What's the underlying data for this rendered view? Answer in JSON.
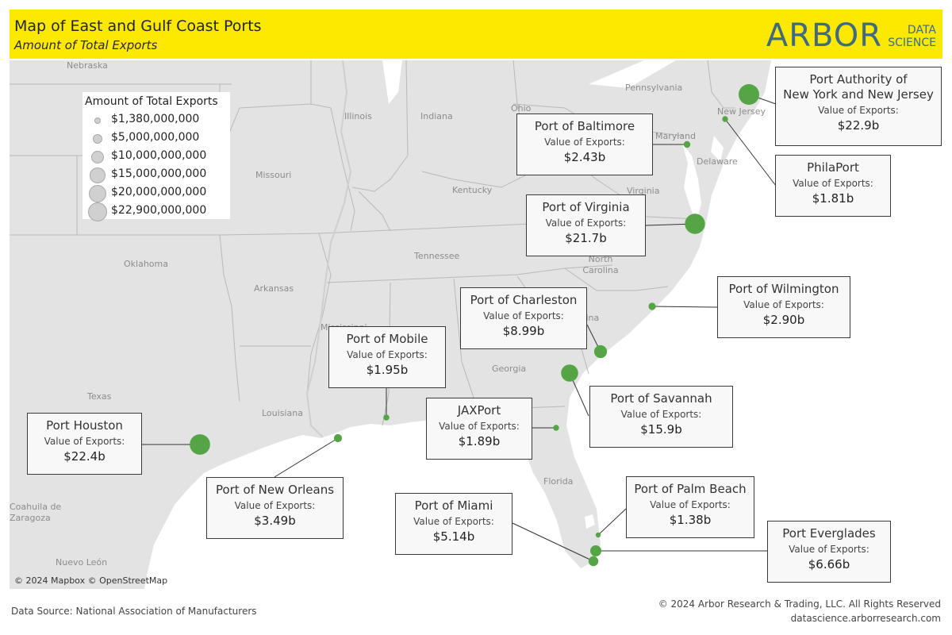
{
  "header": {
    "title": "Map of East and Gulf Coast Ports",
    "subtitle": "Amount of Total Exports",
    "logo_main": "ARBOR",
    "logo_sub1": "DATA",
    "logo_sub2": "SCIENCE"
  },
  "map": {
    "attribution": "© 2024 Mapbox © OpenStreetMap",
    "place_labels": [
      "Nebraska",
      "Illinois",
      "Indiana",
      "Ohio",
      "Pennsylvania",
      "Missouri",
      "Kentucky",
      "Maryland",
      "Delaware",
      "New Jersey",
      "Virginia",
      "Oklahoma",
      "Arkansas",
      "Tennessee",
      "North Carolina",
      "Texas",
      "Louisiana",
      "Mississippi",
      "Georgia",
      "Carolina",
      "Florida",
      "Coahuila de Zaragoza",
      "Nuevo León"
    ],
    "land_color": "#e3e3e3",
    "water_color": "#ffffff",
    "marker_color": "#55a546"
  },
  "legend": {
    "title": "Amount of Total Exports",
    "items": [
      "$1,380,000,000",
      "$5,000,000,000",
      "$10,000,000,000",
      "$15,000,000,000",
      "$20,000,000,000",
      "$22,900,000,000"
    ],
    "values": [
      1.38,
      5,
      10,
      15,
      20,
      22.9
    ]
  },
  "callout_sublabel": "Value of Exports:",
  "ports": [
    {
      "name": "Port Authority of New York and New Jersey",
      "name_line1": "Port Authority of",
      "name_line2": "New York and New Jersey",
      "value_label": "$22.9b",
      "exports_billions": 22.9
    },
    {
      "name": "Port of Baltimore",
      "value_label": "$2.43b",
      "exports_billions": 2.43
    },
    {
      "name": "PhilaPort",
      "value_label": "$1.81b",
      "exports_billions": 1.81
    },
    {
      "name": "Port of Virginia",
      "value_label": "$21.7b",
      "exports_billions": 21.7
    },
    {
      "name": "Port of Wilmington",
      "value_label": "$2.90b",
      "exports_billions": 2.9
    },
    {
      "name": "Port of Charleston",
      "value_label": "$8.99b",
      "exports_billions": 8.99
    },
    {
      "name": "Port of Mobile",
      "value_label": "$1.95b",
      "exports_billions": 1.95
    },
    {
      "name": "Port of Savannah",
      "value_label": "$15.9b",
      "exports_billions": 15.9
    },
    {
      "name": "JAXPort",
      "value_label": "$1.89b",
      "exports_billions": 1.89
    },
    {
      "name": "Port Houston",
      "value_label": "$22.4b",
      "exports_billions": 22.4
    },
    {
      "name": "Port of New Orleans",
      "value_label": "$3.49b",
      "exports_billions": 3.49
    },
    {
      "name": "Port of Palm Beach",
      "value_label": "$1.38b",
      "exports_billions": 1.38
    },
    {
      "name": "Port of Miami",
      "value_label": "$5.14b",
      "exports_billions": 5.14
    },
    {
      "name": "Port Everglades",
      "value_label": "$6.66b",
      "exports_billions": 6.66
    }
  ],
  "footer": {
    "source": "Data Source: National Association of Manufacturers",
    "rights": "© 2024 Arbor Research & Trading, LLC. All Rights Reserved",
    "url": "datascience.arborresearch.com"
  }
}
